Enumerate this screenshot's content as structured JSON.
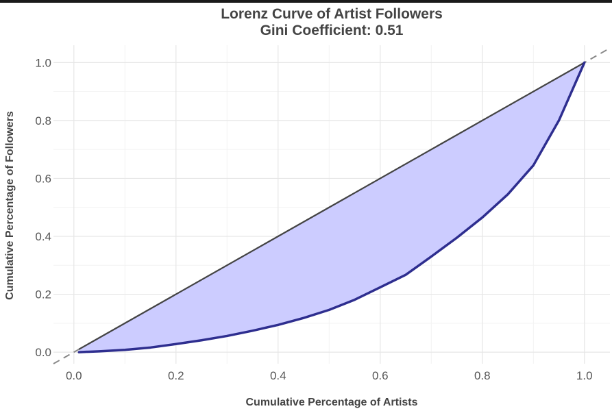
{
  "chart_data": {
    "type": "area",
    "title": "Lorenz Curve of Artist Followers",
    "subtitle": "Gini Coefficient: 0.51",
    "xlabel": "Cumulative Percentage of Artists",
    "ylabel": "Cumulative Percentage of Followers",
    "xlim": [
      -0.04,
      1.05
    ],
    "ylim": [
      -0.04,
      1.06
    ],
    "xticks": [
      0.0,
      0.2,
      0.4,
      0.6,
      0.8,
      1.0
    ],
    "xtick_labels": [
      "0.0",
      "0.2",
      "0.4",
      "0.6",
      "0.8",
      "1.0"
    ],
    "yticks": [
      0.0,
      0.2,
      0.4,
      0.6,
      0.8,
      1.0
    ],
    "ytick_labels": [
      "0.0",
      "0.2",
      "0.4",
      "0.6",
      "0.8",
      "1.0"
    ],
    "grid": true,
    "series": [
      {
        "role": "lorenz-curve",
        "x": [
          0.01,
          0.05,
          0.1,
          0.15,
          0.2,
          0.25,
          0.3,
          0.35,
          0.4,
          0.45,
          0.5,
          0.55,
          0.6,
          0.65,
          0.7,
          0.75,
          0.8,
          0.85,
          0.9,
          0.95,
          1.0
        ],
        "y": [
          0.0,
          0.003,
          0.008,
          0.016,
          0.028,
          0.041,
          0.056,
          0.074,
          0.094,
          0.118,
          0.146,
          0.181,
          0.224,
          0.267,
          0.33,
          0.395,
          0.465,
          0.545,
          0.645,
          0.8,
          1.0
        ]
      },
      {
        "role": "line-of-equality",
        "x": [
          0.01,
          1.0
        ],
        "y": [
          0.01,
          1.0
        ]
      }
    ],
    "reference_line": {
      "style": "dashed",
      "slope": 1,
      "intercept": 0
    },
    "colors": {
      "fill": "#ccccff",
      "curve": "#2e2e8f",
      "equality": "#444444",
      "reference": "#888888",
      "grid_major": "#e6e6e6",
      "grid_minor": "#f2f2f2"
    }
  }
}
